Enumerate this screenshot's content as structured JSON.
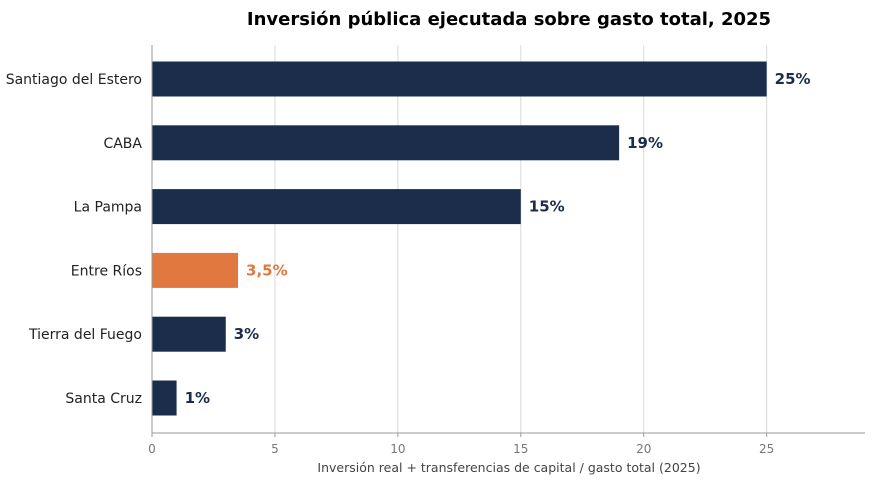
{
  "chart_data": {
    "type": "bar",
    "orientation": "horizontal",
    "title": "Inversión pública ejecutada sobre gasto total, 2025",
    "xlabel": "Inversión real + transferencias de capital / gasto total (2025)",
    "ylabel": "",
    "xlim": [
      0,
      29
    ],
    "xticks": [
      0,
      5,
      10,
      15,
      20,
      25
    ],
    "grid": "vertical",
    "categories": [
      "Santiago del Estero",
      "CABA",
      "La Pampa",
      "Entre Ríos",
      "Tierra del Fuego",
      "Santa Cruz"
    ],
    "values": [
      25,
      19,
      15,
      3.5,
      3,
      1
    ],
    "value_labels": [
      "25%",
      "19%",
      "15%",
      "3,5%",
      "3%",
      "1%"
    ],
    "highlight_category": "Entre Ríos",
    "colors": {
      "default": "#1b2d4b",
      "highlight": "#e07840"
    }
  }
}
